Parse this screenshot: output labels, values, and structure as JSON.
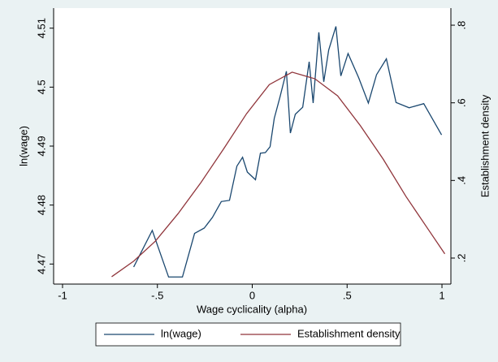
{
  "chart_data": {
    "type": "line",
    "x_label": "Wage cyclicality (alpha)",
    "y_label": "ln(wage)",
    "y2_label": "Establishment density",
    "xlim": [
      -1.047,
      1.047
    ],
    "xticks": [
      -1,
      {
        "value": -0.5,
        "label": "-.5"
      },
      0,
      {
        "value": 0.5,
        "label": ".5"
      },
      1
    ],
    "ylim": [
      4.4666,
      4.5134
    ],
    "yticks": [
      4.47,
      4.48,
      4.49,
      4.5,
      4.51
    ],
    "y2lim": [
      0.133,
      0.844
    ],
    "y2ticks": [
      {
        "value": 0.2,
        "label": ".2"
      },
      {
        "value": 0.4,
        "label": ".4"
      },
      {
        "value": 0.6,
        "label": ".6"
      },
      {
        "value": 0.8,
        "label": ".8"
      }
    ],
    "grid": false,
    "legend": "bottom",
    "series": [
      {
        "name": "ln(wage)",
        "color": "#1a476f",
        "x": [
          -0.625,
          -0.527,
          -0.441,
          -0.368,
          -0.304,
          -0.253,
          -0.21,
          -0.163,
          -0.12,
          -0.081,
          -0.051,
          -0.026,
          0.017,
          0.043,
          0.069,
          0.094,
          0.116,
          0.146,
          0.18,
          0.201,
          0.227,
          0.266,
          0.3,
          0.321,
          0.351,
          0.377,
          0.403,
          0.441,
          0.467,
          0.505,
          0.561,
          0.612,
          0.655,
          0.707,
          0.758,
          0.827,
          0.904,
          0.998
        ],
        "values": [
          4.4695,
          4.4757,
          4.4678,
          4.4678,
          4.4752,
          4.4761,
          4.4779,
          4.4806,
          4.4808,
          4.4866,
          4.4881,
          4.4856,
          4.4843,
          4.4888,
          4.4889,
          4.4899,
          4.4947,
          4.4983,
          4.5027,
          4.4922,
          4.4954,
          4.4966,
          4.5043,
          4.4973,
          4.5093,
          4.5009,
          4.5063,
          4.5103,
          4.5019,
          4.5057,
          4.5016,
          4.4973,
          4.5021,
          4.5048,
          4.4974,
          4.4965,
          4.4972,
          4.4919
        ]
      },
      {
        "name": "Establishment density",
        "color": "#90353b",
        "axis": "y2",
        "x": [
          -0.741,
          -0.625,
          -0.51,
          -0.39,
          -0.27,
          -0.15,
          -0.03,
          0.09,
          0.21,
          0.33,
          0.45,
          0.57,
          0.69,
          0.81,
          0.929,
          1.015
        ],
        "values": [
          0.152,
          0.192,
          0.244,
          0.315,
          0.395,
          0.482,
          0.572,
          0.647,
          0.679,
          0.662,
          0.618,
          0.541,
          0.455,
          0.359,
          0.273,
          0.211
        ]
      }
    ]
  }
}
